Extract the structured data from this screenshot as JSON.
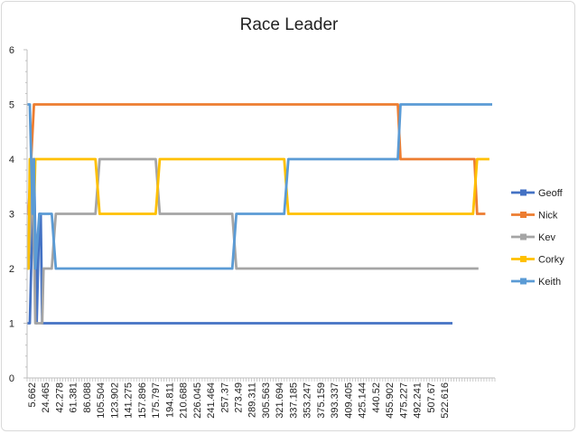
{
  "chart_data": {
    "type": "line",
    "title": "Race Leader",
    "xlabel": "",
    "ylabel": "",
    "ylim": [
      0,
      6
    ],
    "yticks": [
      0,
      1,
      2,
      3,
      4,
      5,
      6
    ],
    "legend_position": "right",
    "grid": false,
    "x_tick_labels": [
      "5.662",
      "24.465",
      "42.278",
      "61.381",
      "86.088",
      "105.504",
      "123.902",
      "141.275",
      "157.896",
      "175.797",
      "194.811",
      "210.688",
      "226.045",
      "241.464",
      "257.37",
      "273.49",
      "289.311",
      "305.563",
      "321.694",
      "337.185",
      "353.247",
      "375.159",
      "393.337",
      "409.405",
      "425.144",
      "440.52",
      "455.902",
      "475.227",
      "492.241",
      "507.67",
      "522.616"
    ],
    "series": [
      {
        "name": "Geoff",
        "color": "#4472c4",
        "points": [
          [
            0,
            1
          ],
          [
            2,
            1
          ],
          [
            5,
            4
          ],
          [
            7,
            1
          ],
          [
            9,
            3
          ],
          [
            10,
            3
          ],
          [
            11,
            1
          ],
          [
            14,
            1
          ],
          [
            28,
            1
          ],
          [
            296,
            1
          ],
          [
            311,
            1
          ]
        ]
      },
      {
        "name": "Nick",
        "color": "#ed7d31",
        "points": [
          [
            0,
            3
          ],
          [
            1,
            3
          ],
          [
            3,
            4
          ],
          [
            5,
            5
          ],
          [
            50,
            5
          ],
          [
            250,
            5
          ],
          [
            271,
            5
          ],
          [
            273,
            4
          ],
          [
            300,
            4
          ],
          [
            327,
            4
          ],
          [
            329,
            3
          ],
          [
            335,
            3
          ]
        ]
      },
      {
        "name": "Kev",
        "color": "#a5a5a5",
        "points": [
          [
            0,
            2
          ],
          [
            1,
            2
          ],
          [
            3,
            3
          ],
          [
            4,
            4
          ],
          [
            6,
            1
          ],
          [
            9,
            1
          ],
          [
            11,
            1
          ],
          [
            12,
            2
          ],
          [
            18,
            2
          ],
          [
            21,
            3
          ],
          [
            50,
            3
          ],
          [
            53,
            4
          ],
          [
            94,
            4
          ],
          [
            97,
            3
          ],
          [
            130,
            3
          ],
          [
            150,
            3
          ],
          [
            153,
            2
          ],
          [
            200,
            2
          ],
          [
            300,
            2
          ],
          [
            330,
            2
          ]
        ]
      },
      {
        "name": "Corky",
        "color": "#ffc000",
        "points": [
          [
            0,
            2
          ],
          [
            1,
            2
          ],
          [
            2,
            4
          ],
          [
            5,
            3
          ],
          [
            6,
            4
          ],
          [
            50,
            4
          ],
          [
            53,
            3
          ],
          [
            94,
            3
          ],
          [
            97,
            4
          ],
          [
            150,
            4
          ],
          [
            188,
            4
          ],
          [
            191,
            3
          ],
          [
            300,
            3
          ],
          [
            326,
            3
          ],
          [
            329,
            4
          ],
          [
            338,
            4
          ]
        ]
      },
      {
        "name": "Keith",
        "color": "#5b9bd5",
        "points": [
          [
            0,
            5
          ],
          [
            2,
            5
          ],
          [
            3,
            4
          ],
          [
            4,
            3
          ],
          [
            5,
            4
          ],
          [
            6,
            2
          ],
          [
            9,
            3
          ],
          [
            18,
            3
          ],
          [
            21,
            2
          ],
          [
            50,
            2
          ],
          [
            150,
            2
          ],
          [
            153,
            3
          ],
          [
            188,
            3
          ],
          [
            191,
            4
          ],
          [
            250,
            4
          ],
          [
            271,
            4
          ],
          [
            273,
            5
          ],
          [
            305,
            5
          ],
          [
            340,
            5
          ]
        ]
      }
    ]
  }
}
